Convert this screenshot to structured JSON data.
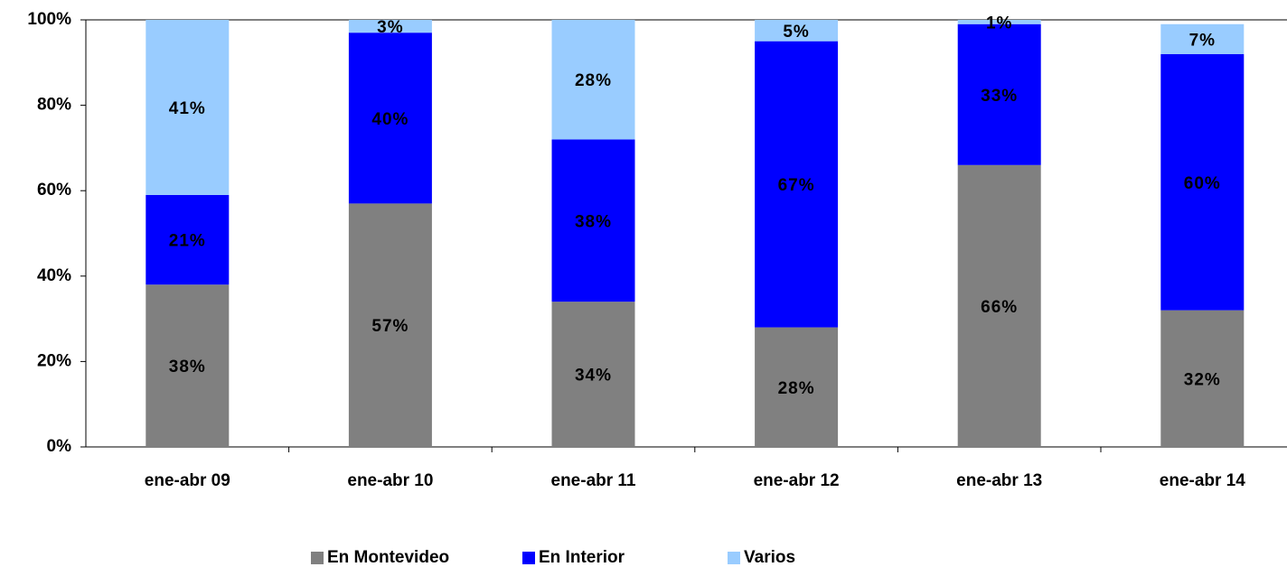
{
  "chart_data": {
    "type": "stacked_bar",
    "categories": [
      "ene-abr 09",
      "ene-abr 10",
      "ene-abr 11",
      "ene-abr 12",
      "ene-abr 13",
      "ene-abr 14"
    ],
    "series": [
      {
        "name": "En Montevideo",
        "color": "#808080",
        "values": [
          38,
          57,
          34,
          28,
          66,
          32
        ],
        "value_labels": [
          "38%",
          "57%",
          "34%",
          "28%",
          "66%",
          "32%"
        ]
      },
      {
        "name": "En Interior",
        "color": "#0000ff",
        "values": [
          21,
          40,
          38,
          67,
          33,
          60
        ],
        "value_labels": [
          "21%",
          "40%",
          "38%",
          "67%",
          "33%",
          "60%"
        ]
      },
      {
        "name": "Varios",
        "color": "#99ccff",
        "values": [
          41,
          3,
          28,
          5,
          1,
          7
        ],
        "value_labels": [
          "41%",
          "3%",
          "28%",
          "5%",
          "1%",
          "7%"
        ]
      }
    ],
    "ylim": [
      0,
      100
    ],
    "yticks": [
      {
        "value": 0,
        "label": "0%"
      },
      {
        "value": 20,
        "label": "20%"
      },
      {
        "value": 40,
        "label": "40%"
      },
      {
        "value": 60,
        "label": "60%"
      },
      {
        "value": 80,
        "label": "80%"
      },
      {
        "value": 100,
        "label": "100%"
      }
    ],
    "legend": "bottom"
  }
}
